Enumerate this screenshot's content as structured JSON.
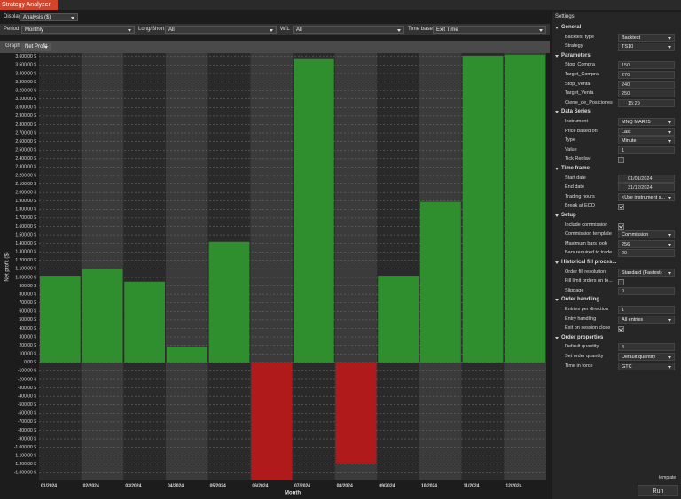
{
  "window": {
    "title": "Strategy Analyzer"
  },
  "toolbar": {
    "display_label": "Display",
    "display_value": "Analysis ($)",
    "period_label": "Period",
    "period_value": "Monthly",
    "longshort_label": "Long/Short",
    "longshort_value": "All",
    "wl_label": "W/L",
    "wl_value": "All",
    "timebase_label": "Time base",
    "timebase_value": "Exit Time",
    "graph_label": "Graph",
    "graph_value": "Net Profit"
  },
  "chart_data": {
    "type": "bar",
    "y_label": "Net profit ($)",
    "x_label": "Month",
    "categories": [
      "01/2024",
      "02/2024",
      "03/2024",
      "04/2024",
      "05/2024",
      "06/2024",
      "07/2024",
      "08/2024",
      "09/2024",
      "10/2024",
      "11/2024",
      "12/2024"
    ],
    "values": [
      1020,
      1100,
      950,
      180,
      1420,
      -1390,
      3570,
      -1190,
      1020,
      1890,
      3610,
      3620
    ],
    "positive_color": "#2f8f2f",
    "negative_color": "#b01a1a",
    "grid": true,
    "ylim": [
      -1390,
      3640
    ],
    "yticks": [
      {
        "value": 3600,
        "label": "3.600,00 $"
      },
      {
        "value": 3500,
        "label": "3.500,00 $"
      },
      {
        "value": 3400,
        "label": "3.400,00 $"
      },
      {
        "value": 3300,
        "label": "3.300,00 $"
      },
      {
        "value": 3200,
        "label": "3.200,00 $"
      },
      {
        "value": 3100,
        "label": "3.100,00 $"
      },
      {
        "value": 3000,
        "label": "3.000,00 $"
      },
      {
        "value": 2900,
        "label": "2.900,00 $"
      },
      {
        "value": 2800,
        "label": "2.800,00 $"
      },
      {
        "value": 2700,
        "label": "2.700,00 $"
      },
      {
        "value": 2600,
        "label": "2.600,00 $"
      },
      {
        "value": 2500,
        "label": "2.500,00 $"
      },
      {
        "value": 2400,
        "label": "2.400,00 $"
      },
      {
        "value": 2300,
        "label": "2.300,00 $"
      },
      {
        "value": 2200,
        "label": "2.200,00 $"
      },
      {
        "value": 2100,
        "label": "2.100,00 $"
      },
      {
        "value": 2000,
        "label": "2.000,00 $"
      },
      {
        "value": 1900,
        "label": "1.900,00 $"
      },
      {
        "value": 1800,
        "label": "1.800,00 $"
      },
      {
        "value": 1700,
        "label": "1.700,00 $"
      },
      {
        "value": 1600,
        "label": "1.600,00 $"
      },
      {
        "value": 1500,
        "label": "1.500,00 $"
      },
      {
        "value": 1400,
        "label": "1.400,00 $"
      },
      {
        "value": 1300,
        "label": "1.300,00 $"
      },
      {
        "value": 1200,
        "label": "1.200,00 $"
      },
      {
        "value": 1100,
        "label": "1.100,00 $"
      },
      {
        "value": 1000,
        "label": "1.000,00 $"
      },
      {
        "value": 900,
        "label": "900,00 $"
      },
      {
        "value": 800,
        "label": "800,00 $"
      },
      {
        "value": 700,
        "label": "700,00 $"
      },
      {
        "value": 600,
        "label": "600,00 $"
      },
      {
        "value": 500,
        "label": "500,00 $"
      },
      {
        "value": 400,
        "label": "400,00 $"
      },
      {
        "value": 300,
        "label": "300,00 $"
      },
      {
        "value": 200,
        "label": "200,00 $"
      },
      {
        "value": 100,
        "label": "100,00 $"
      },
      {
        "value": 0,
        "label": "0,00 $"
      },
      {
        "value": -100,
        "label": "-100,00 $"
      },
      {
        "value": -200,
        "label": "-200,00 $"
      },
      {
        "value": -300,
        "label": "-300,00 $"
      },
      {
        "value": -400,
        "label": "-400,00 $"
      },
      {
        "value": -500,
        "label": "-500,00 $"
      },
      {
        "value": -600,
        "label": "-600,00 $"
      },
      {
        "value": -700,
        "label": "-700,00 $"
      },
      {
        "value": -800,
        "label": "-800,00 $"
      },
      {
        "value": -900,
        "label": "-900,00 $"
      },
      {
        "value": -1000,
        "label": "-1.000,00 $"
      },
      {
        "value": -1100,
        "label": "-1.100,00 $"
      },
      {
        "value": -1200,
        "label": "-1.200,00 $"
      },
      {
        "value": -1300,
        "label": "-1.300,00 $"
      }
    ]
  },
  "settings": {
    "title": "Settings",
    "footer": "template",
    "run": "Run",
    "sections": [
      {
        "title": "General",
        "rows": [
          {
            "label": "Backtest type",
            "value": "Backtest",
            "kind": "dropdown"
          },
          {
            "label": "Strategy",
            "value": "TS10",
            "kind": "dropdown"
          }
        ]
      },
      {
        "title": "Parameters",
        "rows": [
          {
            "label": "Stop_Compra",
            "value": "150",
            "kind": "text"
          },
          {
            "label": "Target_Compra",
            "value": "270",
            "kind": "text"
          },
          {
            "label": "Stop_Venta",
            "value": "240",
            "kind": "text"
          },
          {
            "label": "Target_Venta",
            "value": "250",
            "kind": "text"
          },
          {
            "label": "Cierre_de_Posiciones",
            "value": "15:29",
            "kind": "time"
          }
        ]
      },
      {
        "title": "Data Series",
        "rows": [
          {
            "label": "Instrument",
            "value": "MNQ MAR25",
            "kind": "dropdown"
          },
          {
            "label": "Price based on",
            "value": "Last",
            "kind": "dropdown"
          },
          {
            "label": "Type",
            "value": "Minute",
            "kind": "dropdown"
          },
          {
            "label": "Value",
            "value": "1",
            "kind": "text"
          },
          {
            "label": "Tick Replay",
            "checked": false,
            "kind": "check"
          }
        ]
      },
      {
        "title": "Time frame",
        "rows": [
          {
            "label": "Start date",
            "value": "01/01/2024",
            "kind": "date"
          },
          {
            "label": "End date",
            "value": "31/12/2024",
            "kind": "date"
          },
          {
            "label": "Trading hours",
            "value": "<Use instrument s...",
            "kind": "dropdown"
          },
          {
            "label": "Break at EOD",
            "checked": true,
            "kind": "check"
          }
        ]
      },
      {
        "title": "Setup",
        "rows": [
          {
            "label": "Include commission",
            "checked": true,
            "kind": "check"
          },
          {
            "label": "Commission template",
            "value": "Commission",
            "kind": "dropdown"
          },
          {
            "label": "Maximum bars look",
            "value": "256",
            "kind": "dropdown"
          },
          {
            "label": "Bars required to trade",
            "value": "20",
            "kind": "text"
          }
        ]
      },
      {
        "title": "Historical fill proces...",
        "rows": [
          {
            "label": "Order fill resolution",
            "value": "Standard (Fastest)",
            "kind": "dropdown"
          },
          {
            "label": "Fill limit orders on to...",
            "checked": false,
            "kind": "check"
          },
          {
            "label": "Slippage",
            "value": "0",
            "kind": "text"
          }
        ]
      },
      {
        "title": "Order handling",
        "rows": [
          {
            "label": "Entries per direction",
            "value": "1",
            "kind": "text"
          },
          {
            "label": "Entry handling",
            "value": "All entries",
            "kind": "dropdown"
          },
          {
            "label": "Exit on session close",
            "checked": true,
            "kind": "check"
          }
        ]
      },
      {
        "title": "Order properties",
        "rows": [
          {
            "label": "Default quantity",
            "value": "4",
            "kind": "text"
          },
          {
            "label": "Set order quantity",
            "value": "Default quantity",
            "kind": "dropdown"
          },
          {
            "label": "Time in force",
            "value": "GTC",
            "kind": "dropdown"
          }
        ]
      }
    ]
  }
}
